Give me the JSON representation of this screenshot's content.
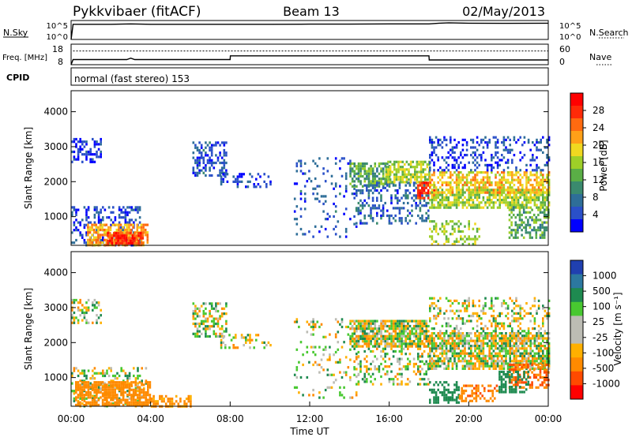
{
  "header": {
    "radar": "Pykkvibaer (fitACF)",
    "beam": "Beam 13",
    "date": "02/May/2013"
  },
  "colors": {
    "power_scale": [
      "#0000ff",
      "#2a50c8",
      "#2e6e98",
      "#3a8a6e",
      "#5aae46",
      "#9ecf28",
      "#f0d820",
      "#ffa018",
      "#ff6a10",
      "#ff2a08",
      "#ff0000"
    ],
    "velocity_scale": [
      "#ff0000",
      "#ff4a00",
      "#ff8a00",
      "#ffb000",
      "#bcbcb4",
      "#bcbcb4",
      "#48c830",
      "#1e8a50",
      "#2c78a0",
      "#2040b0"
    ]
  },
  "chart_data": [
    {
      "type": "line",
      "panel": "nsky-nsearch",
      "ylabel_left": "N.Sky",
      "ylabel_right": "N.Search",
      "left_ticks": [
        "10^5",
        "10^0"
      ],
      "right_ticks": [
        "10^5",
        "10^0"
      ],
      "x_hours": [
        0,
        0.1,
        1,
        2,
        3,
        4,
        6,
        8,
        10,
        12,
        14,
        16,
        18,
        18.5,
        19,
        20,
        22,
        24
      ],
      "y_log": [
        0,
        4,
        4,
        4,
        4.1,
        4,
        4,
        4,
        4,
        4.05,
        4.05,
        4.1,
        4.1,
        4.3,
        4.4,
        4.3,
        4.25,
        4.3
      ]
    },
    {
      "type": "line",
      "panel": "freq-nave",
      "ylabel_left": "Freq. [MHz]",
      "ylabel_right": "Nave",
      "left_ticks": [
        "18",
        "8"
      ],
      "right_ticks": [
        "60",
        "0"
      ],
      "freq_x": [
        0,
        0.1,
        2.8,
        3.0,
        3.2,
        8.0,
        8.01,
        18.0,
        18.01,
        24
      ],
      "freq_y": [
        8,
        10.5,
        10.5,
        11.2,
        10.5,
        10.5,
        12.3,
        12.3,
        10.3,
        10.3
      ],
      "nave_y": 40
    },
    {
      "type": "text",
      "panel": "cpid",
      "label": "CPID",
      "value": "normal (fast stereo) 153"
    },
    {
      "type": "heatmap",
      "panel": "power",
      "ylabel": "Slant Range [km]",
      "yticks": [
        "1000",
        "2000",
        "3000",
        "4000"
      ],
      "ylim": [
        180,
        4600
      ],
      "xlim": [
        0,
        24
      ],
      "colorbar_label": "Power [dB]",
      "colorbar_ticks": [
        "4",
        "8",
        "12",
        "16",
        "20",
        "24",
        "28"
      ],
      "clim": [
        0,
        32
      ],
      "regions": [
        {
          "t0": 0.0,
          "t1": 1.5,
          "r0": 2550,
          "r1": 3250,
          "density": 0.45,
          "level": 3
        },
        {
          "t0": 0.0,
          "t1": 3.5,
          "r0": 180,
          "r1": 1300,
          "density": 0.35,
          "level": 4
        },
        {
          "t0": 0.8,
          "t1": 3.8,
          "r0": 220,
          "r1": 800,
          "density": 0.7,
          "level": 22
        },
        {
          "t0": 1.8,
          "t1": 3.6,
          "r0": 260,
          "r1": 560,
          "density": 0.8,
          "level": 28
        },
        {
          "t0": 6.1,
          "t1": 7.8,
          "r0": 2200,
          "r1": 3150,
          "density": 0.5,
          "level": 5
        },
        {
          "t0": 7.5,
          "t1": 10.0,
          "r0": 1850,
          "r1": 2250,
          "density": 0.35,
          "level": 4
        },
        {
          "t0": 11.2,
          "t1": 14.5,
          "r0": 400,
          "r1": 2700,
          "density": 0.12,
          "level": 5
        },
        {
          "t0": 14.0,
          "t1": 16.0,
          "r0": 1900,
          "r1": 2550,
          "density": 0.65,
          "level": 12
        },
        {
          "t0": 14.2,
          "t1": 18.0,
          "r0": 800,
          "r1": 2000,
          "density": 0.3,
          "level": 6
        },
        {
          "t0": 15.8,
          "t1": 18.0,
          "r0": 2000,
          "r1": 2600,
          "density": 0.7,
          "level": 16
        },
        {
          "t0": 17.4,
          "t1": 18.3,
          "r0": 1500,
          "r1": 2000,
          "density": 0.75,
          "level": 28
        },
        {
          "t0": 18.0,
          "t1": 24.0,
          "r0": 1250,
          "r1": 1800,
          "density": 0.7,
          "level": 16
        },
        {
          "t0": 18.0,
          "t1": 24.0,
          "r0": 1700,
          "r1": 2300,
          "density": 0.6,
          "level": 20
        },
        {
          "t0": 18.0,
          "t1": 24.0,
          "r0": 2300,
          "r1": 3300,
          "density": 0.3,
          "level": 4
        },
        {
          "t0": 18.0,
          "t1": 20.5,
          "r0": 180,
          "r1": 900,
          "density": 0.35,
          "level": 16
        },
        {
          "t0": 22.0,
          "t1": 24.0,
          "r0": 400,
          "r1": 1300,
          "density": 0.5,
          "level": 12
        }
      ]
    },
    {
      "type": "heatmap",
      "panel": "velocity",
      "ylabel": "Slant Range [km]",
      "yticks": [
        "1000",
        "2000",
        "3000",
        "4000"
      ],
      "ylim": [
        180,
        4600
      ],
      "xlim": [
        0,
        24
      ],
      "xticks": [
        "00:00",
        "04:00",
        "08:00",
        "12:00",
        "16:00",
        "20:00",
        "00:00"
      ],
      "xlabel": "Time UT",
      "colorbar_label": "Velocity [m s⁻¹]",
      "colorbar_ticks": [
        "-1000",
        "-500",
        "-100",
        "-25",
        "25",
        "100",
        "500",
        "1000"
      ],
      "regions": [
        {
          "t0": 0.0,
          "t1": 1.5,
          "r0": 2550,
          "r1": 3250,
          "density": 0.4,
          "level": 0
        },
        {
          "t0": 0.0,
          "t1": 3.8,
          "r0": 180,
          "r1": 1300,
          "density": 0.35,
          "level": 0
        },
        {
          "t0": 0.2,
          "t1": 4.0,
          "r0": 220,
          "r1": 900,
          "density": 0.75,
          "level": -300
        },
        {
          "t0": 4.0,
          "t1": 6.0,
          "r0": 200,
          "r1": 500,
          "density": 0.5,
          "level": -200
        },
        {
          "t0": 6.1,
          "t1": 7.8,
          "r0": 2200,
          "r1": 3150,
          "density": 0.45,
          "level": 0
        },
        {
          "t0": 7.5,
          "t1": 10.0,
          "r0": 1850,
          "r1": 2250,
          "density": 0.3,
          "level": 0
        },
        {
          "t0": 11.2,
          "t1": 14.5,
          "r0": 400,
          "r1": 2700,
          "density": 0.12,
          "level": 0
        },
        {
          "t0": 14.0,
          "t1": 18.0,
          "r0": 1900,
          "r1": 2650,
          "density": 0.8,
          "level": 0
        },
        {
          "t0": 14.2,
          "t1": 18.0,
          "r0": 800,
          "r1": 2000,
          "density": 0.3,
          "level": 0
        },
        {
          "t0": 18.0,
          "t1": 24.0,
          "r0": 1250,
          "r1": 2300,
          "density": 0.75,
          "level": 0
        },
        {
          "t0": 18.0,
          "t1": 24.0,
          "r0": 2300,
          "r1": 3300,
          "density": 0.3,
          "level": 0
        },
        {
          "t0": 18.0,
          "t1": 19.5,
          "r0": 300,
          "r1": 900,
          "density": 0.5,
          "level": 300
        },
        {
          "t0": 19.5,
          "t1": 21.5,
          "r0": 300,
          "r1": 800,
          "density": 0.45,
          "level": -400
        },
        {
          "t0": 22.0,
          "t1": 24.0,
          "r0": 700,
          "r1": 1400,
          "density": 0.55,
          "level": -500
        },
        {
          "t0": 21.5,
          "t1": 23.0,
          "r0": 600,
          "r1": 1200,
          "density": 0.45,
          "level": 300
        }
      ]
    }
  ]
}
